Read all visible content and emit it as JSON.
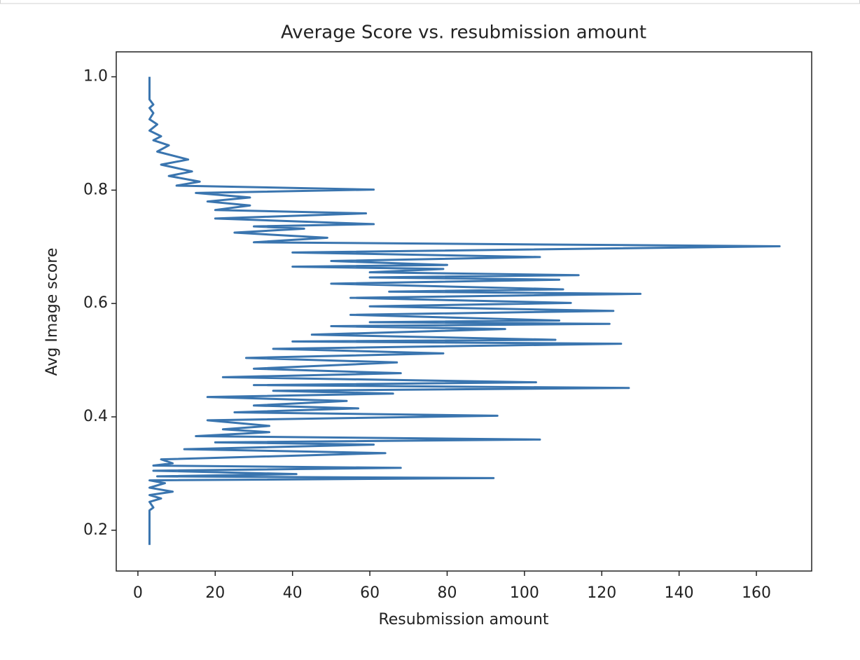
{
  "chart_data": {
    "type": "line",
    "title": "Average Score vs. resubmission amount",
    "x_label": "Resubmission amount",
    "y_label": "Avg Image score",
    "x": [
      3,
      3,
      4,
      3,
      6,
      3,
      9,
      3,
      7,
      3,
      92,
      5,
      41,
      4,
      68,
      4,
      9,
      6,
      64,
      12,
      61,
      20,
      104,
      15,
      34,
      22,
      34,
      18,
      93,
      25,
      57,
      30,
      54,
      18,
      66,
      35,
      127,
      30,
      103,
      22,
      68,
      30,
      67,
      28,
      79,
      35,
      125,
      40,
      108,
      45,
      95,
      50,
      122,
      60,
      109,
      55,
      123,
      60,
      112,
      55,
      130,
      65,
      110,
      50,
      109,
      60,
      114,
      60,
      79,
      40,
      80,
      50,
      104,
      40,
      166,
      30,
      49,
      25,
      43,
      30,
      61,
      20,
      59,
      20,
      29,
      18,
      29,
      15,
      61,
      10,
      16,
      8,
      14,
      6,
      13,
      5,
      8,
      4,
      6,
      3,
      5,
      3,
      4,
      3,
      4,
      3,
      3
    ],
    "series": [
      {
        "color": "#3a75af",
        "values": [
          0.174,
          0.235,
          0.24,
          0.25,
          0.256,
          0.262,
          0.268,
          0.275,
          0.283,
          0.288,
          0.292,
          0.295,
          0.299,
          0.305,
          0.31,
          0.314,
          0.318,
          0.325,
          0.336,
          0.343,
          0.351,
          0.355,
          0.36,
          0.366,
          0.373,
          0.378,
          0.384,
          0.394,
          0.402,
          0.408,
          0.415,
          0.42,
          0.428,
          0.435,
          0.441,
          0.446,
          0.451,
          0.456,
          0.461,
          0.47,
          0.477,
          0.485,
          0.496,
          0.504,
          0.512,
          0.52,
          0.529,
          0.533,
          0.536,
          0.545,
          0.555,
          0.56,
          0.564,
          0.567,
          0.57,
          0.58,
          0.587,
          0.595,
          0.601,
          0.61,
          0.617,
          0.621,
          0.625,
          0.635,
          0.642,
          0.646,
          0.65,
          0.655,
          0.661,
          0.665,
          0.668,
          0.675,
          0.682,
          0.69,
          0.701,
          0.708,
          0.716,
          0.725,
          0.732,
          0.736,
          0.74,
          0.75,
          0.759,
          0.765,
          0.773,
          0.78,
          0.787,
          0.795,
          0.801,
          0.808,
          0.815,
          0.825,
          0.833,
          0.845,
          0.854,
          0.868,
          0.879,
          0.888,
          0.895,
          0.905,
          0.916,
          0.925,
          0.936,
          0.945,
          0.951,
          0.96,
          1.0
        ]
      }
    ],
    "xlim": [
      -5.6,
      174.3
    ],
    "ylim": [
      0.128,
      1.044
    ],
    "xticks": [
      0,
      20,
      40,
      60,
      80,
      100,
      120,
      140,
      160
    ],
    "yticks": [
      0.2,
      0.4,
      0.6,
      0.8,
      {
        "value": 1.0,
        "label": "1.0"
      }
    ],
    "grid": false
  }
}
